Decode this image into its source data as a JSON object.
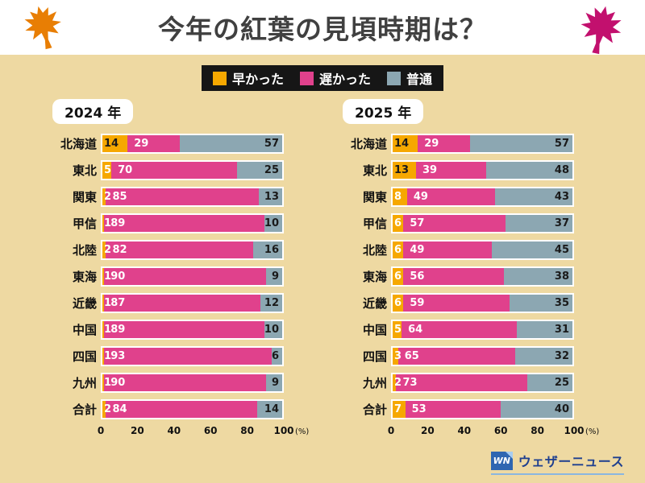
{
  "header": {
    "title": "今年の紅葉の見頃時期は？"
  },
  "legend": {
    "background": "#161616",
    "items": [
      {
        "label": "早かった",
        "color": "#f6a800"
      },
      {
        "label": "遅かった",
        "color": "#e0418c"
      },
      {
        "label": "普通",
        "color": "#8ca7b2"
      }
    ]
  },
  "colors": {
    "page_background": "#eed9a2",
    "leaf_left": "#e87e04",
    "leaf_right": "#c2106e",
    "brand_blue": "#1e3f8f"
  },
  "chart_data": [
    {
      "type": "bar",
      "orientation": "horizontal",
      "stacked": true,
      "title": "2024 年",
      "categories": [
        "北海道",
        "東北",
        "関東",
        "甲信",
        "北陸",
        "東海",
        "近畿",
        "中国",
        "四国",
        "九州",
        "合計"
      ],
      "series": [
        {
          "name": "早かった",
          "values": [
            14,
            5,
            2,
            1,
            2,
            1,
            1,
            1,
            1,
            1,
            2
          ]
        },
        {
          "name": "遅かった",
          "values": [
            29,
            70,
            85,
            89,
            82,
            90,
            87,
            89,
            93,
            90,
            84
          ]
        },
        {
          "name": "普通",
          "values": [
            57,
            25,
            13,
            10,
            16,
            9,
            12,
            10,
            6,
            9,
            14
          ]
        }
      ],
      "xlim": [
        0,
        100
      ],
      "xticks": [
        0,
        20,
        40,
        60,
        80,
        100
      ],
      "xunit": "(%)"
    },
    {
      "type": "bar",
      "orientation": "horizontal",
      "stacked": true,
      "title": "2025 年",
      "categories": [
        "北海道",
        "東北",
        "関東",
        "甲信",
        "北陸",
        "東海",
        "近畿",
        "中国",
        "四国",
        "九州",
        "合計"
      ],
      "series": [
        {
          "name": "早かった",
          "values": [
            14,
            13,
            8,
            6,
            6,
            6,
            6,
            5,
            3,
            2,
            7
          ]
        },
        {
          "name": "遅かった",
          "values": [
            29,
            39,
            49,
            57,
            49,
            56,
            59,
            64,
            65,
            73,
            53
          ]
        },
        {
          "name": "普通",
          "values": [
            57,
            48,
            43,
            37,
            45,
            38,
            35,
            31,
            32,
            25,
            40
          ]
        }
      ],
      "xlim": [
        0,
        100
      ],
      "xticks": [
        0,
        20,
        40,
        60,
        80,
        100
      ],
      "xunit": "(%)"
    }
  ],
  "footer": {
    "logo_mark": "WN",
    "brand": "ウェザーニュース"
  }
}
